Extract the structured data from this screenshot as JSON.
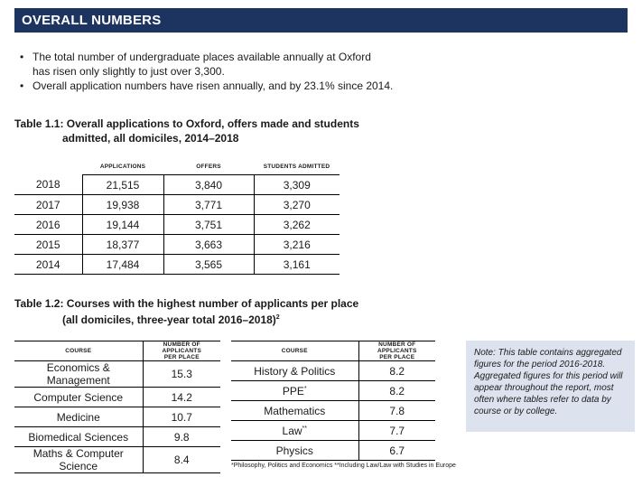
{
  "header": {
    "title": "OVERALL NUMBERS"
  },
  "bullets": [
    [
      "The total number of undergraduate places available annually at Oxford",
      "has risen only slightly to just over 3,300."
    ],
    [
      "Overall application numbers have risen annually, and by 23.1% since 2014."
    ]
  ],
  "table1": {
    "caption_line1": "Table 1.1: Overall applications to Oxford, offers made and students",
    "caption_line2": "admitted, all domiciles, 2014–2018",
    "headers": [
      "APPLICATIONS",
      "OFFERS",
      "STUDENTS ADMITTED"
    ],
    "rows": [
      [
        "2018",
        "21,515",
        "3,840",
        "3,309"
      ],
      [
        "2017",
        "19,938",
        "3,771",
        "3,270"
      ],
      [
        "2016",
        "19,144",
        "3,751",
        "3,262"
      ],
      [
        "2015",
        "18,377",
        "3,663",
        "3,216"
      ],
      [
        "2014",
        "17,484",
        "3,565",
        "3,161"
      ]
    ]
  },
  "table2": {
    "caption_line1": "Table 1.2: Courses with the highest number of applicants per place",
    "caption_line2": "(all domiciles, three-year total 2016–2018)",
    "caption_sup": "2",
    "col_course": "COURSE",
    "col_apps_line1": "NUMBER OF APPLICANTS",
    "col_apps_line2": "PER PLACE",
    "left_rows": [
      [
        "Economics & Management",
        "15.3"
      ],
      [
        "Computer Science",
        "14.2"
      ],
      [
        "Medicine",
        "10.7"
      ],
      [
        "Biomedical Sciences",
        "9.8"
      ],
      [
        "Maths & Computer Science",
        "8.4"
      ]
    ],
    "right_rows": [
      [
        "History & Politics",
        "",
        "8.2"
      ],
      [
        "PPE",
        "*",
        "8.2"
      ],
      [
        "Mathematics",
        "",
        "7.8"
      ],
      [
        "Law",
        "**",
        "7.7"
      ],
      [
        "Physics",
        "",
        "6.7"
      ]
    ]
  },
  "note": "Note: This table contains aggregated figures for the period 2016-2018. Aggregated figures for this period will appear throughout the report, most often where tables refer to data by course or by college.",
  "footnote": "*Philosophy, Politics and Economics   **Including Law/Law with Studies in Europe"
}
